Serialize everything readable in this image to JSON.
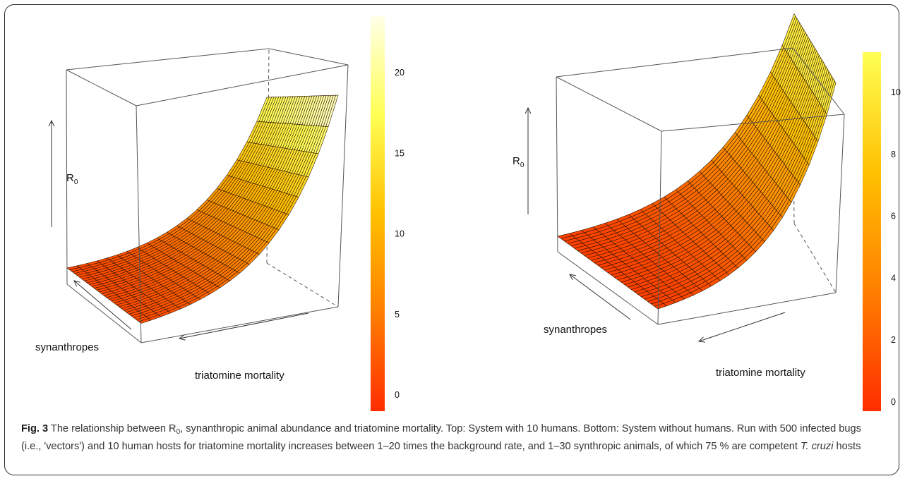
{
  "figure": {
    "caption": {
      "label": "Fig. 3",
      "text_1": " The relationship between R",
      "sub": "0",
      "text_2": ", synanthropic animal abundance and triatomine mortality. Top: System with 10 humans. Bottom: System without humans. Run with 500 infected bugs (i.e., 'vectors') and 10 human hosts for triatomine mortality increases between 1–20 times the background rate, and 1–30 synthropic animals, of which 75 % are competent ",
      "italic": "T. cruzi",
      "text_3": " hosts"
    }
  },
  "chart_data": [
    {
      "type": "surface",
      "zlabel": "R",
      "zlabel_sub": "0",
      "xlabel": "triatomine mortality",
      "ylabel": "synanthropes",
      "colorbar": {
        "min": -1,
        "max": 23.5,
        "ticks": [
          0,
          5,
          10,
          15,
          20
        ],
        "tick_labels": [
          "0",
          "5",
          "10",
          "15",
          "20"
        ],
        "colors": [
          "#ff2d00",
          "#ff7f00",
          "#ffc100",
          "#ffff55",
          "#ffffe8"
        ]
      },
      "surface": {
        "mortality_steps": 20,
        "synanthrope_steps": 30,
        "R0_at_low_mortality": [
          23.5,
          18.2
        ],
        "R0_at_high_mortality": [
          0.3,
          0.15
        ]
      }
    },
    {
      "type": "surface",
      "zlabel": "R",
      "zlabel_sub": "0",
      "xlabel": "triatomine mortality",
      "ylabel": "synanthropes",
      "colorbar": {
        "min": -0.3,
        "max": 11.3,
        "ticks": [
          0,
          2,
          4,
          6,
          8,
          10
        ],
        "tick_labels": [
          "0",
          "2",
          "4",
          "6",
          "8",
          "10"
        ],
        "colors": [
          "#ff2d00",
          "#ff7f00",
          "#ffc100",
          "#ffff55"
        ]
      },
      "surface": {
        "mortality_steps": 20,
        "synanthrope_steps": 30,
        "R0_at_low_mortality": [
          11.2,
          11.2
        ],
        "R0_at_high_mortality": [
          0.1,
          0.1
        ]
      }
    }
  ]
}
